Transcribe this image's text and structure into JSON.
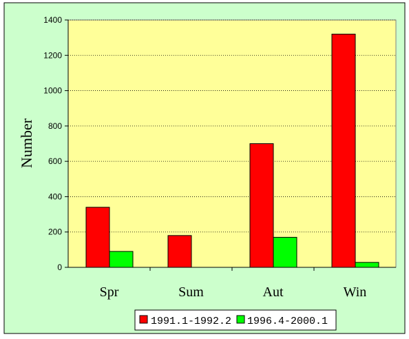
{
  "chart_data": {
    "type": "bar",
    "categories": [
      "Spr",
      "Sum",
      "Aut",
      "Win"
    ],
    "series": [
      {
        "name": "1991.1-1992.2",
        "values": [
          340,
          180,
          700,
          1320
        ],
        "color": "#ff0000"
      },
      {
        "name": "1996.4-2000.1",
        "values": [
          90,
          0,
          170,
          28
        ],
        "color": "#00ff00"
      }
    ],
    "title": "",
    "xlabel": "",
    "ylabel": "Number",
    "ylim": [
      0,
      1400
    ],
    "yticks": [
      "0",
      "200",
      "400",
      "600",
      "800",
      "1000",
      "1200",
      "1400"
    ],
    "grid": "horizontal dotted",
    "legend_position": "bottom",
    "colors": {
      "outer_background": "#ccffcc",
      "plot_background": "#ffff99"
    }
  }
}
